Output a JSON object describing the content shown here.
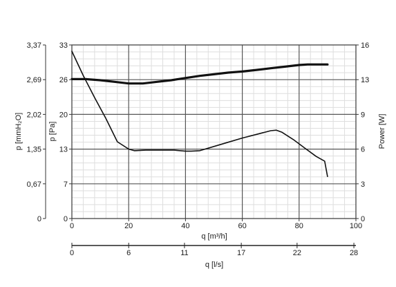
{
  "chart_data": {
    "type": "line",
    "x_unit_primary": "m³/h",
    "xlabel": "q [m³/h]",
    "xlim": [
      0,
      100
    ],
    "xticks": [
      "0",
      "20",
      "40",
      "60",
      "80",
      "100"
    ],
    "xlabel_secondary": "q [l/s]",
    "xlim_secondary": [
      0,
      28
    ],
    "xticks_secondary": [
      {
        "label": "0",
        "value": 0
      },
      {
        "label": "6",
        "value": 5.6
      },
      {
        "label": "11",
        "value": 11.1
      },
      {
        "label": "17",
        "value": 16.7
      },
      {
        "label": "22",
        "value": 22.2
      },
      {
        "label": "28",
        "value": 27.8
      }
    ],
    "ylabel": "p [Pa]",
    "ylim": [
      0,
      33
    ],
    "yticks": [
      "0",
      "7",
      "13",
      "20",
      "26",
      "33"
    ],
    "ylabel_mm": "p [mmH₂O]",
    "yticks_mm": [
      "0",
      "0,67",
      "1,35",
      "2,02",
      "2,69",
      "3,37"
    ],
    "ylabel_power": "Power [W]",
    "ylim_power": [
      0,
      16
    ],
    "yticks_power": [
      "0",
      "3",
      "6",
      "9",
      "13",
      "16"
    ],
    "grid": true,
    "series": [
      {
        "axis": "pressure",
        "x": [
          0,
          4,
          8,
          12,
          16,
          20,
          22,
          26,
          30,
          36,
          40,
          42,
          45,
          50,
          55,
          60,
          65,
          70,
          72,
          74,
          78,
          82,
          86,
          89,
          90
        ],
        "values": [
          31.8,
          27.2,
          23.0,
          19.0,
          14.6,
          13.2,
          12.9,
          13.0,
          13.0,
          13.0,
          12.8,
          12.8,
          12.9,
          13.7,
          14.5,
          15.3,
          16.0,
          16.7,
          16.8,
          16.4,
          15.0,
          13.4,
          11.8,
          10.9,
          8.0
        ]
      },
      {
        "axis": "power",
        "x": [
          0,
          5,
          10,
          15,
          20,
          25,
          30,
          35,
          40,
          45,
          50,
          55,
          60,
          65,
          70,
          75,
          80,
          83,
          88,
          90
        ],
        "values": [
          12.85,
          12.85,
          12.75,
          12.6,
          12.45,
          12.45,
          12.6,
          12.75,
          12.95,
          13.15,
          13.3,
          13.45,
          13.55,
          13.7,
          13.85,
          14.0,
          14.15,
          14.2,
          14.2,
          14.2
        ]
      }
    ]
  }
}
